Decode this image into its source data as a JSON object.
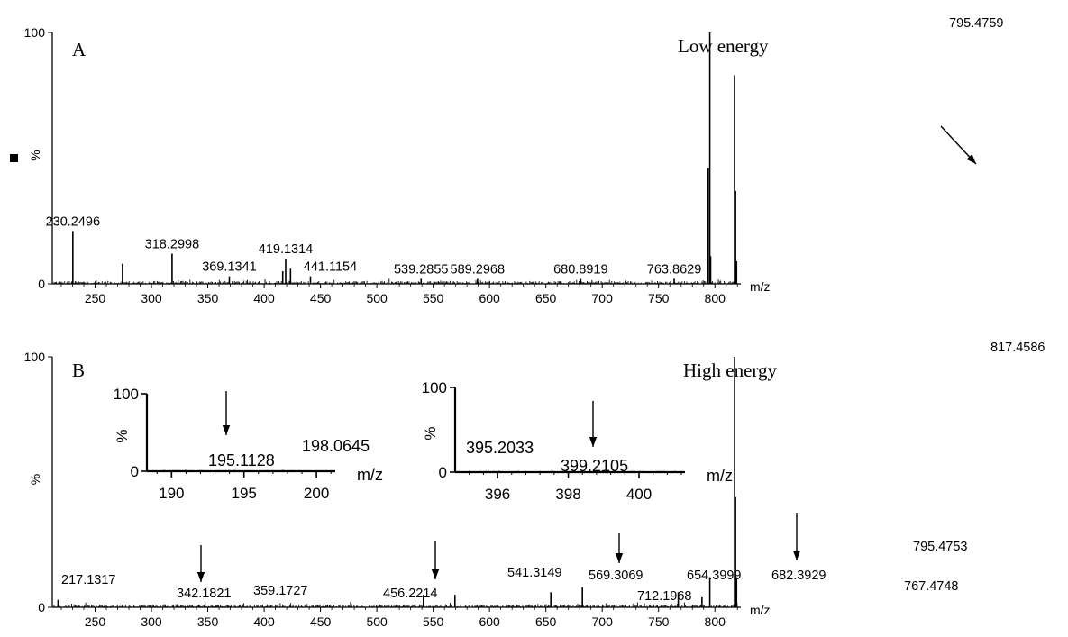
{
  "chart_data": [
    {
      "id": "A",
      "type": "bar",
      "panel_label": "A",
      "annotation": "Low energy",
      "xlabel": "m/z",
      "ylabel": "%",
      "xlim": [
        212,
        823
      ],
      "ylim": [
        0,
        100
      ],
      "x_ticks": [
        250,
        300,
        350,
        400,
        450,
        500,
        550,
        600,
        650,
        700,
        750,
        800
      ],
      "y_ticks": [
        0,
        100
      ],
      "peaks": [
        {
          "mz": 230.2496,
          "intensity": 21,
          "label": "230.2496"
        },
        {
          "mz": 274.3,
          "intensity": 8,
          "label": ""
        },
        {
          "mz": 318.2998,
          "intensity": 12,
          "label": "318.2998"
        },
        {
          "mz": 369.1341,
          "intensity": 3,
          "label": "369.1341"
        },
        {
          "mz": 416.5,
          "intensity": 5,
          "label": ""
        },
        {
          "mz": 419.1314,
          "intensity": 10,
          "label": "419.1314"
        },
        {
          "mz": 423.4,
          "intensity": 6,
          "label": ""
        },
        {
          "mz": 441.1154,
          "intensity": 3,
          "label": "441.1154"
        },
        {
          "mz": 539.2855,
          "intensity": 2,
          "label": "539.2855"
        },
        {
          "mz": 589.2968,
          "intensity": 2,
          "label": "589.2968"
        },
        {
          "mz": 680.8919,
          "intensity": 2,
          "label": "680.8919"
        },
        {
          "mz": 763.8629,
          "intensity": 2,
          "label": "763.8629"
        },
        {
          "mz": 794.0,
          "intensity": 46,
          "label": ""
        },
        {
          "mz": 795.4759,
          "intensity": 100,
          "label": "795.4759"
        },
        {
          "mz": 796.2,
          "intensity": 11,
          "label": ""
        },
        {
          "mz": 817.4,
          "intensity": 83,
          "label": ""
        },
        {
          "mz": 818.3,
          "intensity": 37,
          "label": ""
        },
        {
          "mz": 819.2,
          "intensity": 9,
          "label": ""
        }
      ],
      "arrows": [
        {
          "mz": 795.4759
        }
      ]
    },
    {
      "id": "B",
      "type": "bar",
      "panel_label": "B",
      "annotation": "High energy",
      "xlabel": "m/z",
      "ylabel": "%",
      "xlim": [
        212,
        823
      ],
      "ylim": [
        0,
        100
      ],
      "x_ticks": [
        250,
        300,
        350,
        400,
        450,
        500,
        550,
        600,
        650,
        700,
        750,
        800
      ],
      "y_ticks": [
        0,
        100
      ],
      "peaks": [
        {
          "mz": 217.1317,
          "intensity": 3,
          "label": "217.1317"
        },
        {
          "mz": 342.1821,
          "intensity": 1,
          "label": "342.1821"
        },
        {
          "mz": 359.1727,
          "intensity": 1,
          "label": "359.1727"
        },
        {
          "mz": 456.2214,
          "intensity": 1,
          "label": "456.2214"
        },
        {
          "mz": 541.3149,
          "intensity": 5,
          "label": "541.3149"
        },
        {
          "mz": 569.3069,
          "intensity": 5,
          "label": "569.3069"
        },
        {
          "mz": 654.3999,
          "intensity": 6,
          "label": "654.3999"
        },
        {
          "mz": 682.3929,
          "intensity": 8,
          "label": "682.3929"
        },
        {
          "mz": 712.1968,
          "intensity": 1,
          "label": "712.1968"
        },
        {
          "mz": 767.4748,
          "intensity": 6,
          "label": "767.4748"
        },
        {
          "mz": 788.5,
          "intensity": 4,
          "label": ""
        },
        {
          "mz": 795.4753,
          "intensity": 12,
          "label": "795.4753"
        },
        {
          "mz": 817.4586,
          "intensity": 100,
          "label": "817.4586"
        },
        {
          "mz": 818.3,
          "intensity": 44,
          "label": ""
        },
        {
          "mz": 819.2,
          "intensity": 12,
          "label": ""
        }
      ],
      "arrows": [
        {
          "mz": 304
        },
        {
          "mz": 452
        },
        {
          "mz": 565
        },
        {
          "mz": 678
        }
      ]
    },
    {
      "id": "B-inset-1",
      "type": "bar",
      "xlabel": "m/z",
      "ylabel": "%",
      "xlim": [
        188.3,
        201.3
      ],
      "ylim": [
        0,
        100
      ],
      "x_ticks": [
        190,
        195,
        200
      ],
      "y_ticks": [
        0,
        100
      ],
      "peaks": [
        {
          "mz": 195.1128,
          "intensity": 1,
          "label": "195.1128"
        },
        {
          "mz": 198.0645,
          "intensity": 1,
          "label": "198.0645"
        }
      ],
      "arrows": [
        {
          "mz": 194.0
        }
      ]
    },
    {
      "id": "B-inset-2",
      "type": "bar",
      "xlabel": "m/z",
      "ylabel": "%",
      "xlim": [
        394.8,
        401.3
      ],
      "ylim": [
        0,
        100
      ],
      "x_ticks": [
        396,
        398,
        400
      ],
      "y_ticks": [
        0,
        100
      ],
      "peaks": [
        {
          "mz": 395.2033,
          "intensity": 1,
          "label": "395.2033"
        },
        {
          "mz": 399.2105,
          "intensity": 1,
          "label": "399.2105"
        }
      ],
      "arrows": [
        {
          "mz": 398.65
        }
      ]
    }
  ]
}
